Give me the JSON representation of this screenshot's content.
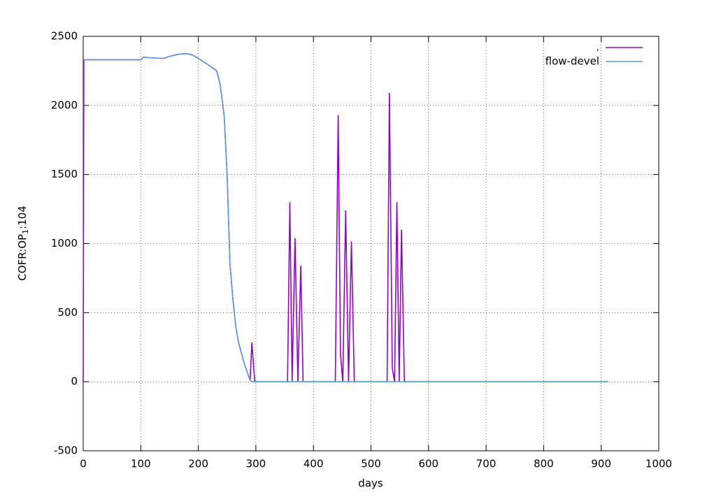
{
  "chart_data": {
    "type": "line",
    "xlabel": "days",
    "ylabel": [
      "COFR:OP",
      "1",
      ":104"
    ],
    "x": [
      0,
      1,
      50,
      100,
      105,
      115,
      140,
      150,
      165,
      180,
      190,
      200,
      215,
      232,
      238,
      245,
      250,
      255,
      260,
      265,
      270,
      280,
      290,
      293,
      298,
      355,
      359,
      363,
      368,
      373,
      378,
      382,
      438,
      443,
      447,
      451,
      456,
      461,
      466,
      471,
      528,
      532,
      537,
      541,
      545,
      549,
      553,
      558,
      912
    ],
    "series": [
      {
        "name": ".",
        "color": "#9400d3",
        "values": [
          0,
          2330,
          2330,
          2330,
          2350,
          2345,
          2340,
          2355,
          2370,
          2375,
          2365,
          2340,
          2300,
          2250,
          2150,
          1920,
          1500,
          850,
          600,
          400,
          280,
          130,
          10,
          285,
          0,
          0,
          1300,
          0,
          1040,
          0,
          840,
          0,
          0,
          1930,
          200,
          0,
          1240,
          0,
          1015,
          0,
          0,
          2090,
          100,
          0,
          1300,
          0,
          1100,
          0,
          0
        ]
      },
      {
        "name": "flow-devel",
        "color": "#56a0e6",
        "values": [
          2330,
          2330,
          2330,
          2330,
          2350,
          2345,
          2340,
          2355,
          2370,
          2375,
          2365,
          2340,
          2300,
          2250,
          2150,
          1920,
          1500,
          850,
          600,
          400,
          280,
          130,
          10,
          0,
          0,
          0,
          0,
          0,
          0,
          0,
          0,
          0,
          0,
          0,
          0,
          0,
          0,
          0,
          0,
          0,
          0,
          0,
          0,
          0,
          0,
          0,
          0,
          0,
          0
        ]
      }
    ],
    "xlim": [
      0,
      1000
    ],
    "xticks": [
      0,
      100,
      200,
      300,
      400,
      500,
      600,
      700,
      800,
      900,
      1000
    ],
    "ylim": [
      -500,
      2500
    ],
    "yticks": [
      -500,
      0,
      500,
      1000,
      1500,
      2000,
      2500
    ],
    "grid": true,
    "legend": "top-right"
  }
}
